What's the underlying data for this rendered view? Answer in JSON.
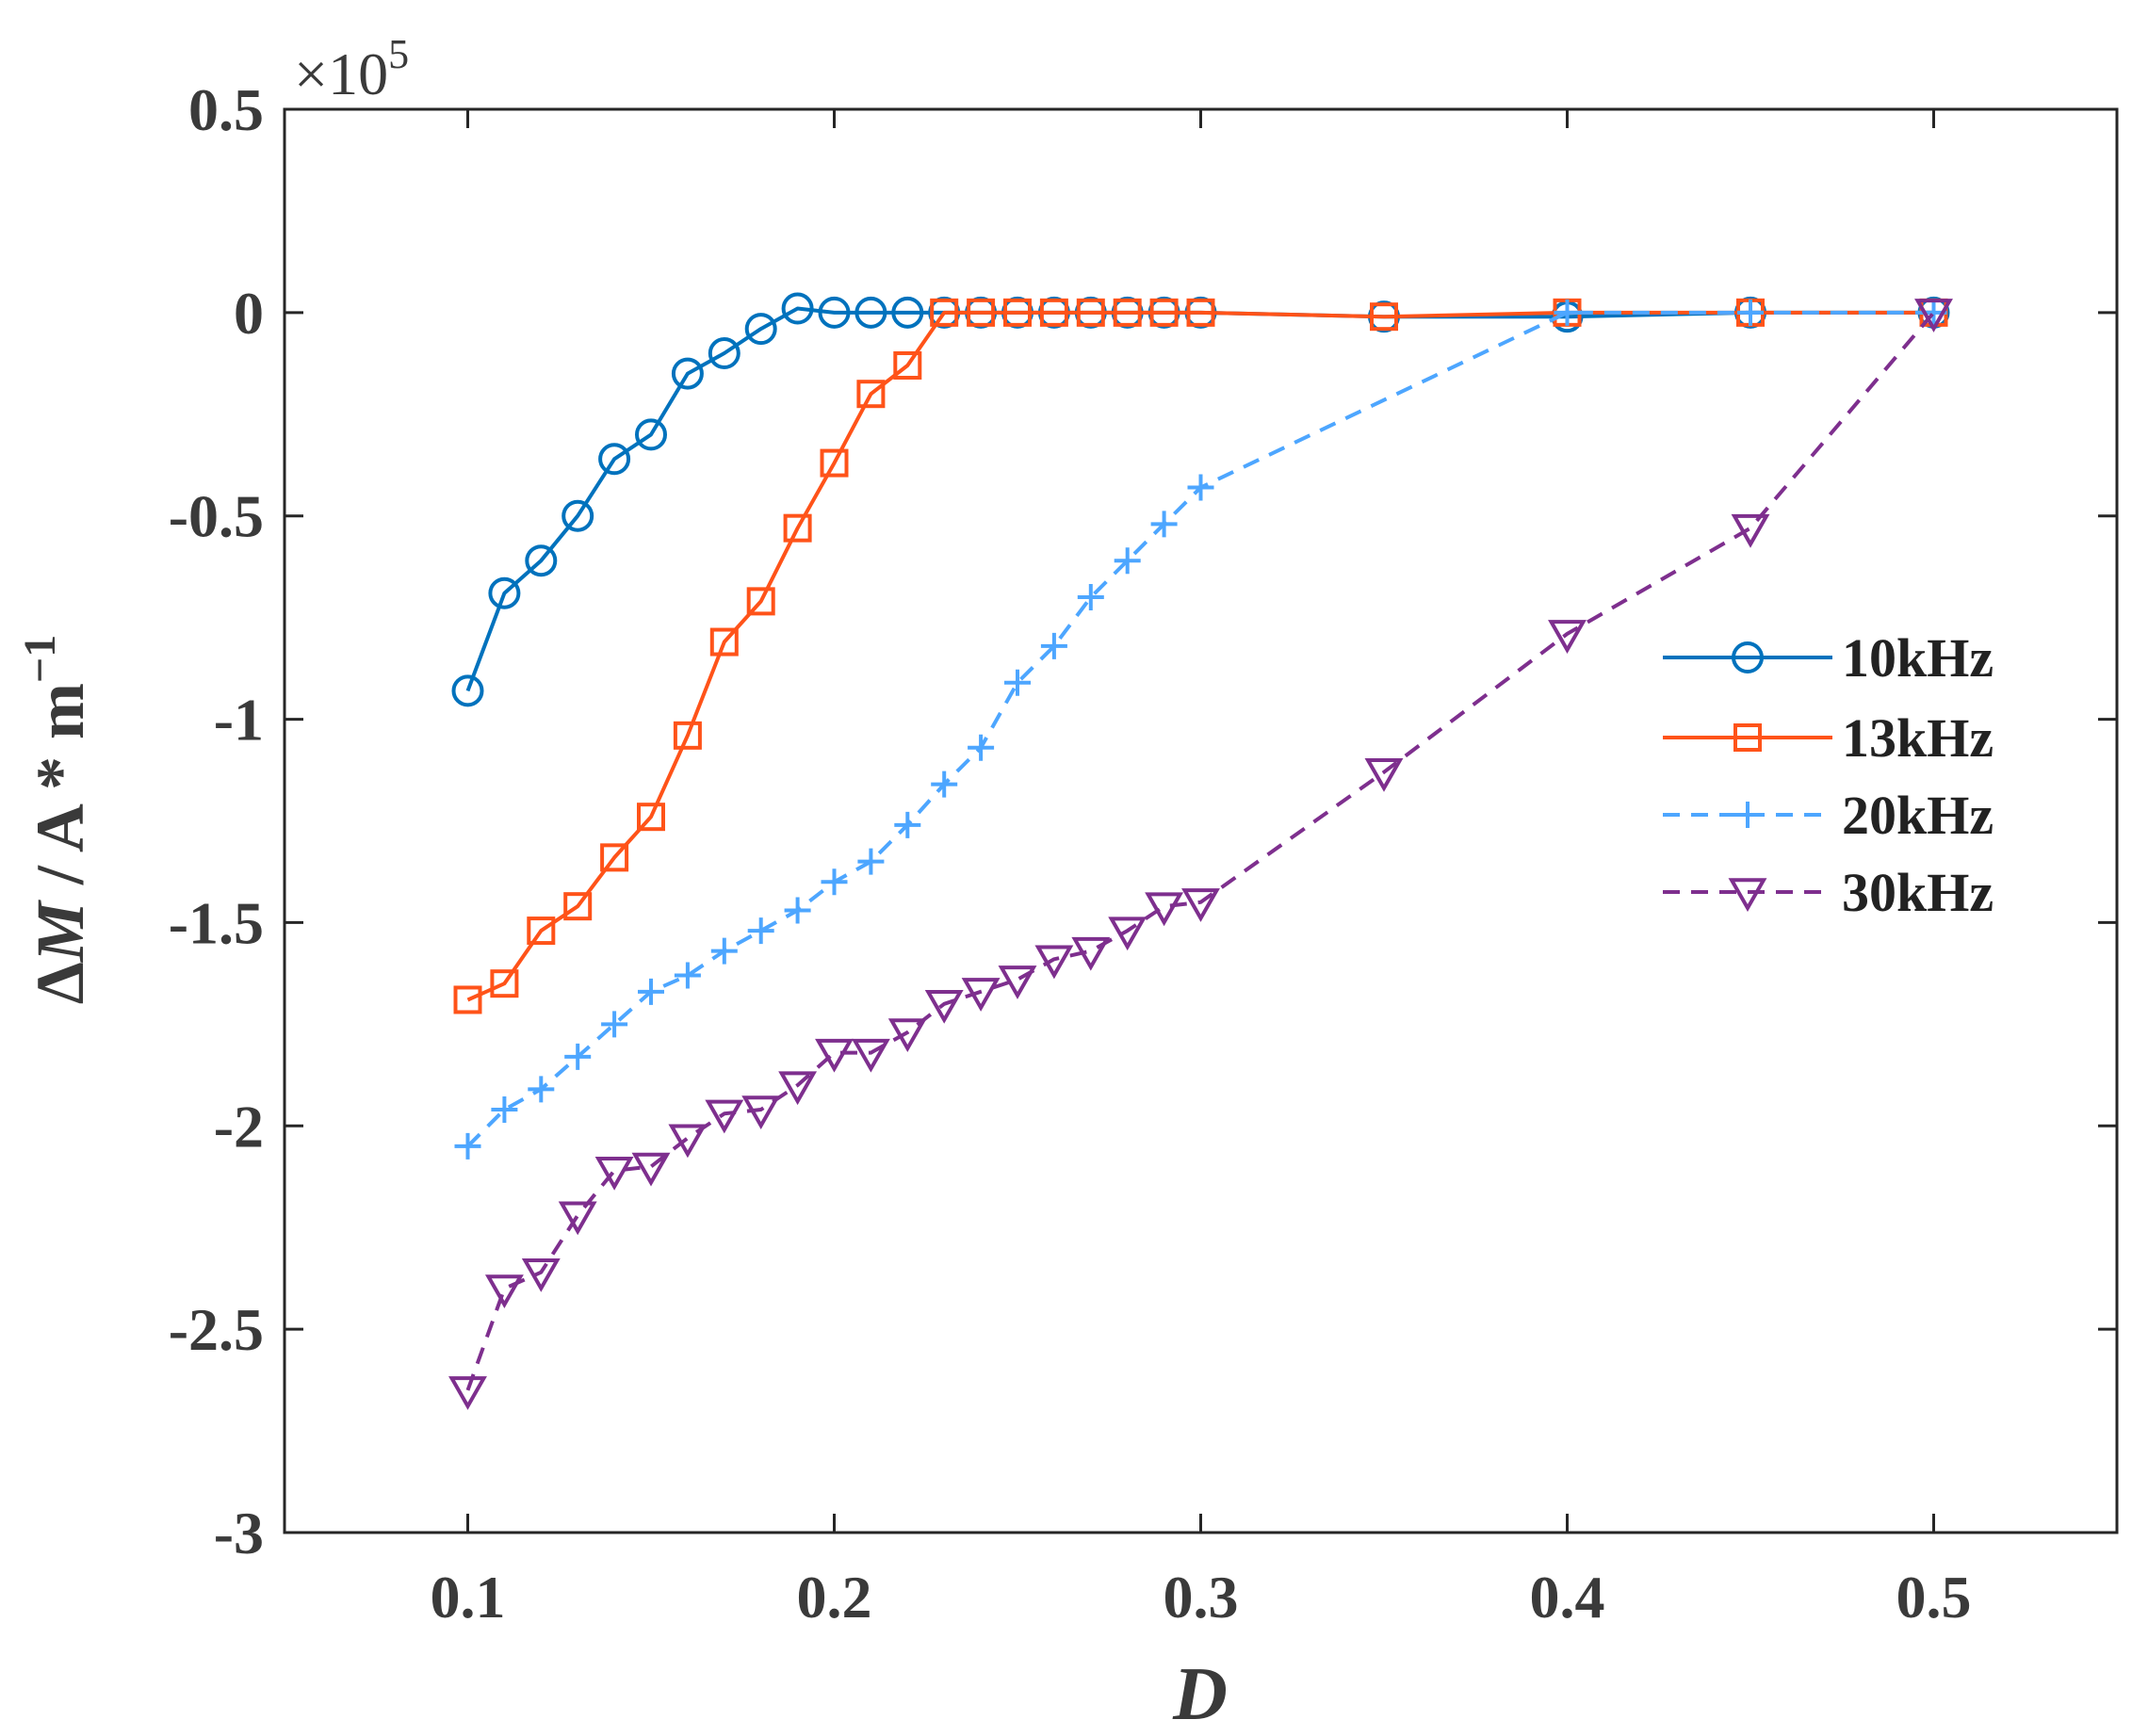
{
  "chart_data": {
    "type": "line",
    "title": "",
    "xlabel": "D",
    "ylabel": {
      "delta": "Δ",
      "symbol": "M",
      "rest": " / A * m",
      "superscript": "−1"
    },
    "y_multiplier": {
      "prefix": "×10",
      "exponent": "5"
    },
    "xlim": [
      0.05,
      0.55
    ],
    "ylim": [
      -3,
      0.5
    ],
    "x_ticks": [
      0.1,
      0.2,
      0.3,
      0.4,
      0.5
    ],
    "x_tick_labels": [
      "0.1",
      "0.2",
      "0.3",
      "0.4",
      "0.5"
    ],
    "y_ticks": [
      0.5,
      0,
      -0.5,
      -1,
      -1.5,
      -2,
      -2.5,
      -3
    ],
    "y_tick_labels": [
      "0.5",
      "0",
      "-0.5",
      "-1",
      "-1.5",
      "-2",
      "-2.5",
      "-3"
    ],
    "legend_position": "right",
    "series": [
      {
        "name": "10kHz",
        "color": "#0072BD",
        "marker": "circle",
        "dash": "solid",
        "x": [
          0.1,
          0.11,
          0.12,
          0.13,
          0.14,
          0.15,
          0.16,
          0.17,
          0.18,
          0.19,
          0.2,
          0.21,
          0.22,
          0.23,
          0.24,
          0.25,
          0.26,
          0.27,
          0.28,
          0.29,
          0.3,
          0.35,
          0.4,
          0.45,
          0.5
        ],
        "y": [
          -0.93,
          -0.69,
          -0.61,
          -0.5,
          -0.36,
          -0.3,
          -0.15,
          -0.1,
          -0.04,
          0.01,
          0,
          0,
          0,
          0,
          0,
          0,
          0,
          0,
          0,
          0,
          0,
          -0.01,
          -0.01,
          0,
          0
        ]
      },
      {
        "name": "13kHz",
        "color": "#FF5319",
        "marker": "square",
        "dash": "solid",
        "x": [
          0.1,
          0.11,
          0.12,
          0.13,
          0.14,
          0.15,
          0.16,
          0.17,
          0.18,
          0.19,
          0.2,
          0.21,
          0.22,
          0.23,
          0.24,
          0.25,
          0.26,
          0.27,
          0.28,
          0.29,
          0.3,
          0.35,
          0.4,
          0.45,
          0.5
        ],
        "y": [
          -1.69,
          -1.65,
          -1.52,
          -1.46,
          -1.34,
          -1.24,
          -1.04,
          -0.81,
          -0.71,
          -0.53,
          -0.37,
          -0.2,
          -0.13,
          0,
          0,
          0,
          0,
          0,
          0,
          0,
          0,
          -0.01,
          0,
          0,
          0
        ]
      },
      {
        "name": "20kHz",
        "color": "#4DA6FF",
        "marker": "plus",
        "dash": "dashed",
        "x": [
          0.1,
          0.11,
          0.12,
          0.13,
          0.14,
          0.15,
          0.16,
          0.17,
          0.18,
          0.19,
          0.2,
          0.21,
          0.22,
          0.23,
          0.24,
          0.25,
          0.26,
          0.27,
          0.28,
          0.29,
          0.3,
          0.4,
          0.45,
          0.5
        ],
        "y": [
          -2.05,
          -1.96,
          -1.91,
          -1.83,
          -1.75,
          -1.67,
          -1.63,
          -1.57,
          -1.52,
          -1.47,
          -1.4,
          -1.35,
          -1.26,
          -1.16,
          -1.07,
          -0.91,
          -0.82,
          -0.7,
          -0.61,
          -0.52,
          -0.43,
          0,
          0,
          0
        ]
      },
      {
        "name": "30kHz",
        "color": "#7E2F8E",
        "marker": "triangle-down",
        "dash": "dashed",
        "x": [
          0.1,
          0.11,
          0.12,
          0.13,
          0.14,
          0.15,
          0.16,
          0.17,
          0.18,
          0.19,
          0.2,
          0.21,
          0.22,
          0.23,
          0.24,
          0.25,
          0.26,
          0.27,
          0.28,
          0.29,
          0.3,
          0.35,
          0.4,
          0.45,
          0.5
        ],
        "y": [
          -2.65,
          -2.4,
          -2.36,
          -2.22,
          -2.11,
          -2.1,
          -2.03,
          -1.97,
          -1.96,
          -1.9,
          -1.82,
          -1.82,
          -1.77,
          -1.7,
          -1.67,
          -1.64,
          -1.59,
          -1.57,
          -1.52,
          -1.46,
          -1.45,
          -1.13,
          -0.79,
          -0.53,
          0
        ]
      }
    ]
  }
}
